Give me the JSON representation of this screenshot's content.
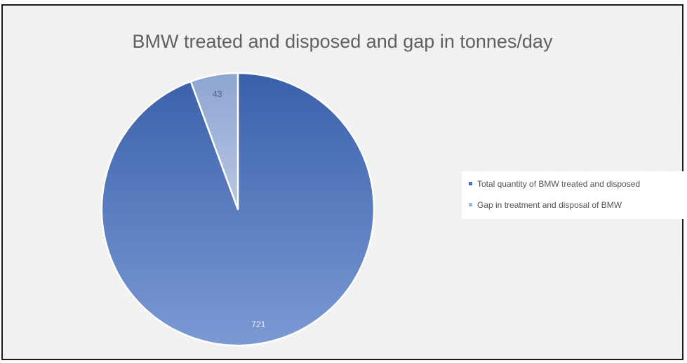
{
  "chart_data": {
    "type": "pie",
    "title": "BMW treated and disposed and gap in tonnes/day",
    "slices": [
      {
        "label": "Total quantity of BMW treated  and disposed",
        "value": 721,
        "color": "#5b7ec4"
      },
      {
        "label": "Gap in treatment and disposal of BMW",
        "value": 43,
        "color": "#a4b6dc"
      }
    ],
    "legend_position": "right"
  }
}
